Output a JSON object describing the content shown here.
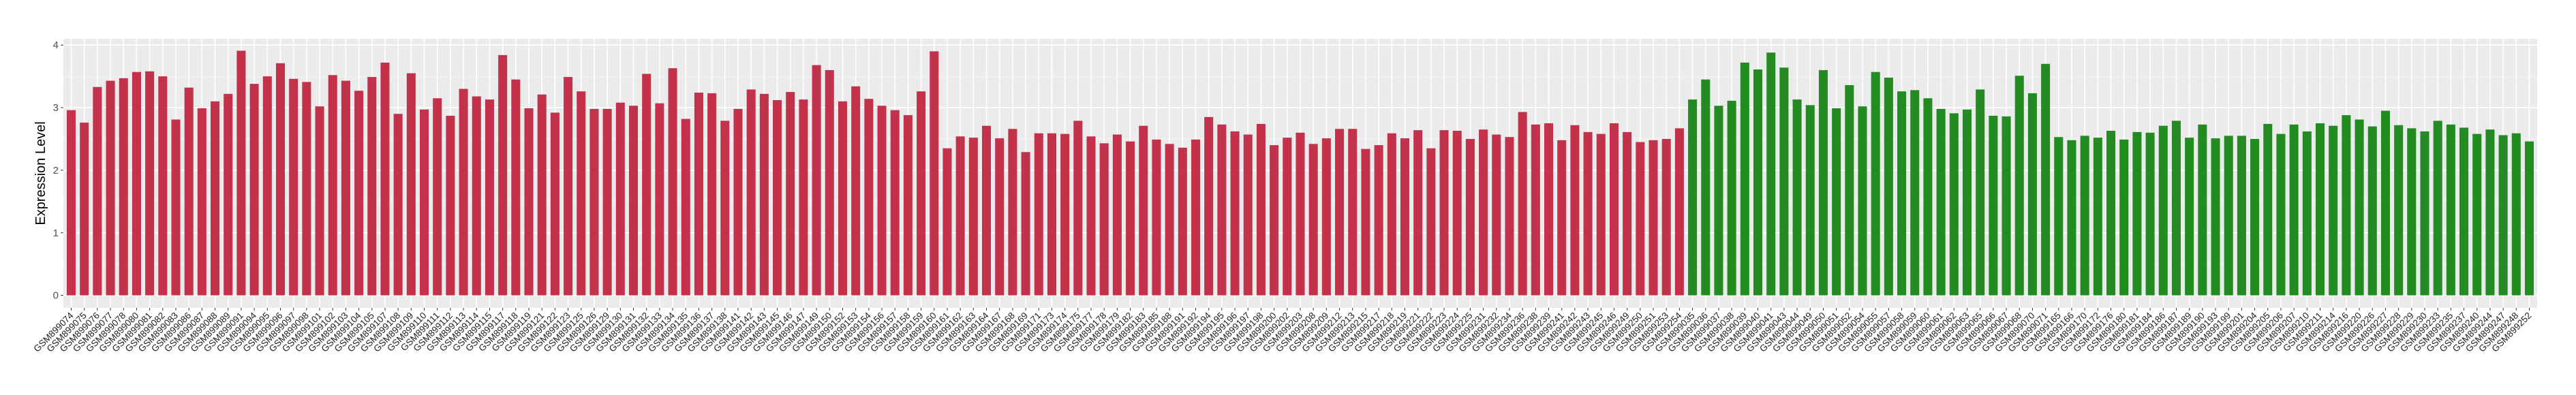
{
  "chart_data": {
    "type": "bar",
    "title": "",
    "xlabel": "",
    "ylabel": "Expression Level",
    "ylim": [
      -0.2,
      4.1
    ],
    "yticks": [
      0,
      1,
      2,
      3,
      4
    ],
    "grid": true,
    "legend": "none",
    "panel_background": "#EBEBEB",
    "series": [
      {
        "color": "#C3314A",
        "categories": [
          "GSM899074",
          "GSM899075",
          "GSM899076",
          "GSM899077",
          "GSM899078",
          "GSM899080",
          "GSM899081",
          "GSM899082",
          "GSM899083",
          "GSM899086",
          "GSM899087",
          "GSM899088",
          "GSM899089",
          "GSM899091",
          "GSM899094",
          "GSM899095",
          "GSM899096",
          "GSM899097",
          "GSM899098",
          "GSM899101",
          "GSM899102",
          "GSM899103",
          "GSM899104",
          "GSM899105",
          "GSM899107",
          "GSM899108",
          "GSM899109",
          "GSM899110",
          "GSM899111",
          "GSM899112",
          "GSM899113",
          "GSM899114",
          "GSM899115",
          "GSM899117",
          "GSM899118",
          "GSM899119",
          "GSM899121",
          "GSM899122",
          "GSM899123",
          "GSM899125",
          "GSM899126",
          "GSM899129",
          "GSM899130",
          "GSM899131",
          "GSM899132",
          "GSM899133",
          "GSM899134",
          "GSM899135",
          "GSM899136",
          "GSM899137",
          "GSM899138",
          "GSM899141",
          "GSM899142",
          "GSM899143",
          "GSM899145",
          "GSM899146",
          "GSM899147",
          "GSM899149",
          "GSM899150",
          "GSM899152",
          "GSM899153",
          "GSM899154",
          "GSM899156",
          "GSM899157",
          "GSM899158",
          "GSM899159",
          "GSM899160",
          "GSM899161",
          "GSM899162",
          "GSM899163",
          "GSM899164",
          "GSM899167",
          "GSM899168",
          "GSM899169",
          "GSM899171",
          "GSM899173",
          "GSM899174",
          "GSM899175",
          "GSM899177",
          "GSM899178",
          "GSM899179",
          "GSM899182",
          "GSM899183",
          "GSM899185",
          "GSM899188",
          "GSM899191",
          "GSM899192",
          "GSM899194",
          "GSM899195",
          "GSM899196",
          "GSM899197",
          "GSM899198",
          "GSM899200",
          "GSM899202",
          "GSM899203",
          "GSM899208",
          "GSM899209",
          "GSM899212",
          "GSM899213",
          "GSM899215",
          "GSM899217",
          "GSM899218",
          "GSM899219",
          "GSM899221",
          "GSM899222",
          "GSM899223",
          "GSM899224",
          "GSM899225",
          "GSM899231",
          "GSM899232",
          "GSM899234",
          "GSM899236",
          "GSM899238",
          "GSM899239",
          "GSM899241",
          "GSM899242",
          "GSM899243",
          "GSM899245",
          "GSM899246",
          "GSM899249",
          "GSM899250",
          "GSM899251",
          "GSM899253",
          "GSM899254"
        ],
        "values": [
          2.96,
          2.76,
          3.33,
          3.43,
          3.47,
          3.57,
          3.58,
          3.5,
          2.81,
          3.32,
          2.99,
          3.1,
          3.22,
          3.91,
          3.38,
          3.5,
          3.71,
          3.46,
          3.41,
          3.02,
          3.52,
          3.43,
          3.27,
          3.49,
          3.72,
          2.9,
          3.55,
          2.97,
          3.15,
          2.87,
          3.3,
          3.18,
          3.13,
          3.84,
          3.45,
          2.99,
          3.21,
          2.92,
          3.49,
          3.26,
          2.98,
          2.98,
          3.08,
          3.03,
          3.54,
          3.07,
          3.63,
          2.82,
          3.24,
          3.23,
          2.79,
          2.98,
          3.29,
          3.22,
          3.12,
          3.25,
          3.13,
          3.68,
          3.6,
          3.1,
          3.34,
          3.14,
          3.03,
          2.96,
          2.88,
          3.26,
          3.9,
          2.35,
          2.54,
          2.52,
          2.71,
          2.51,
          2.66,
          2.29,
          2.59,
          2.59,
          2.58,
          2.79,
          2.54,
          2.43,
          2.57,
          2.46,
          2.71,
          2.49,
          2.42,
          2.36,
          2.49,
          2.85,
          2.73,
          2.62,
          2.57,
          2.74,
          2.4,
          2.52,
          2.6,
          2.42,
          2.51,
          2.66,
          2.66,
          2.34,
          2.4,
          2.59,
          2.51,
          2.64,
          2.35,
          2.64,
          2.63,
          2.5,
          2.65,
          2.57,
          2.53,
          2.93,
          2.73,
          2.75,
          2.48,
          2.72,
          2.61,
          2.58,
          2.75,
          2.61,
          2.45,
          2.48,
          2.5,
          2.67
        ]
      },
      {
        "color": "#228B22",
        "categories": [
          "GSM899035",
          "GSM899036",
          "GSM899037",
          "GSM899038",
          "GSM899039",
          "GSM899040",
          "GSM899041",
          "GSM899043",
          "GSM899044",
          "GSM899049",
          "GSM899050",
          "GSM899051",
          "GSM899052",
          "GSM899054",
          "GSM899055",
          "GSM899057",
          "GSM899058",
          "GSM899059",
          "GSM899060",
          "GSM899061",
          "GSM899062",
          "GSM899063",
          "GSM899065",
          "GSM899066",
          "GSM899067",
          "GSM899068",
          "GSM899070",
          "GSM899071",
          "GSM899165",
          "GSM899166",
          "GSM899170",
          "GSM899172",
          "GSM899176",
          "GSM899180",
          "GSM899181",
          "GSM899184",
          "GSM899186",
          "GSM899187",
          "GSM899189",
          "GSM899190",
          "GSM899193",
          "GSM899199",
          "GSM899201",
          "GSM899204",
          "GSM899205",
          "GSM899206",
          "GSM899207",
          "GSM899210",
          "GSM899211",
          "GSM899214",
          "GSM899216",
          "GSM899220",
          "GSM899226",
          "GSM899227",
          "GSM899228",
          "GSM899229",
          "GSM899230",
          "GSM899233",
          "GSM899235",
          "GSM899237",
          "GSM899240",
          "GSM899244",
          "GSM899247",
          "GSM899248",
          "GSM899252"
        ],
        "values": [
          3.13,
          3.45,
          3.03,
          3.11,
          3.72,
          3.61,
          3.88,
          3.64,
          3.13,
          3.04,
          3.6,
          2.99,
          3.36,
          3.02,
          3.57,
          3.48,
          3.26,
          3.28,
          3.15,
          2.98,
          2.91,
          2.97,
          3.29,
          2.87,
          2.86,
          3.51,
          3.23,
          3.7,
          2.53,
          2.48,
          2.55,
          2.52,
          2.63,
          2.49,
          2.61,
          2.6,
          2.71,
          2.79,
          2.52,
          2.73,
          2.51,
          2.55,
          2.55,
          2.5,
          2.74,
          2.58,
          2.73,
          2.62,
          2.75,
          2.71,
          2.88,
          2.81,
          2.7,
          2.95,
          2.72,
          2.67,
          2.62,
          2.79,
          2.73,
          2.68,
          2.58,
          2.65,
          2.56,
          2.59,
          2.46
        ]
      }
    ]
  }
}
